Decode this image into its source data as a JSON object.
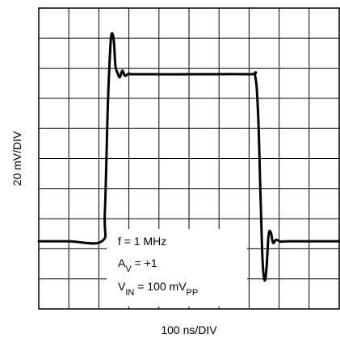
{
  "chart_data": {
    "type": "line",
    "xlabel": "100 ns/DIV",
    "ylabel": "20 mV/DIV",
    "xlim": [
      0,
      10
    ],
    "ylim": [
      0,
      10
    ],
    "grid": true,
    "grid_divisions": {
      "x": 10,
      "y": 10
    },
    "series": [
      {
        "x": [
          0,
          1,
          2.1,
          2.2,
          2.3,
          2.38,
          2.43,
          2.5,
          2.55,
          2.62,
          2.7,
          2.78,
          2.87,
          3.0,
          3.2,
          5.0,
          7.0,
          7.2,
          7.3,
          7.38,
          7.45,
          7.52,
          7.58,
          7.65,
          7.72,
          7.8,
          7.9,
          8.05,
          8.3,
          9.0,
          10.0
        ],
        "y": [
          2.25,
          2.25,
          2.25,
          3.2,
          6.8,
          8.65,
          9.15,
          8.9,
          8.1,
          7.85,
          7.7,
          7.92,
          7.75,
          7.82,
          7.8,
          7.8,
          7.8,
          7.75,
          6.5,
          3.8,
          1.6,
          0.95,
          1.35,
          2.45,
          2.55,
          2.2,
          2.3,
          2.24,
          2.25,
          2.25,
          2.25
        ]
      }
    ],
    "annotations": {
      "freq": "f = 1 MHz",
      "gain": {
        "base": "A",
        "sub": "V",
        "rest": " = +1"
      },
      "vin": {
        "base": "V",
        "sub": "IN",
        "mid": " = 100 mV",
        "sub2": "PP"
      }
    }
  }
}
